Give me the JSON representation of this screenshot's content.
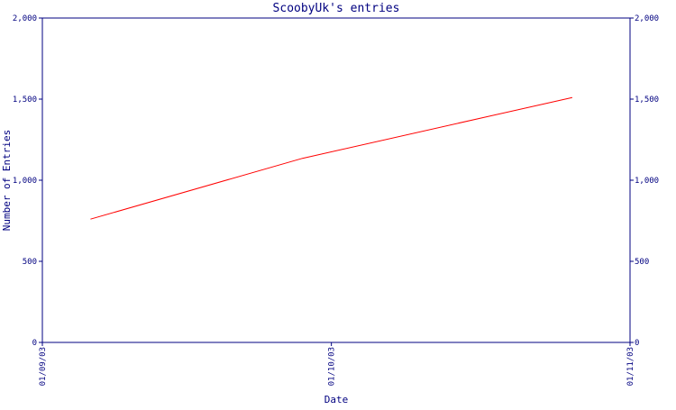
{
  "colors": {
    "axis": "#000080",
    "series": "#ff0000",
    "background": "#ffffff"
  },
  "chart_data": {
    "type": "line",
    "title": "ScoobyUk's entries",
    "xlabel": "Date",
    "ylabel": "Number of Entries",
    "ylim": [
      0,
      2000
    ],
    "xlim": [
      "2003-09-01",
      "2003-11-01"
    ],
    "y_ticks": [
      0,
      500,
      1000,
      1500,
      2000
    ],
    "y_tick_labels": [
      "0",
      "500",
      "1,000",
      "1,500",
      "2,000"
    ],
    "x_ticks": [
      "2003-09-01",
      "2003-10-01",
      "2003-11-01"
    ],
    "x_tick_labels": [
      "01/09/03",
      "01/10/03",
      "01/11/03"
    ],
    "grid": false,
    "series": [
      {
        "color": "#ff0000",
        "x": [
          "2003-09-06",
          "2003-09-28",
          "2003-10-26"
        ],
        "y": [
          760,
          1135,
          1510
        ]
      }
    ]
  }
}
